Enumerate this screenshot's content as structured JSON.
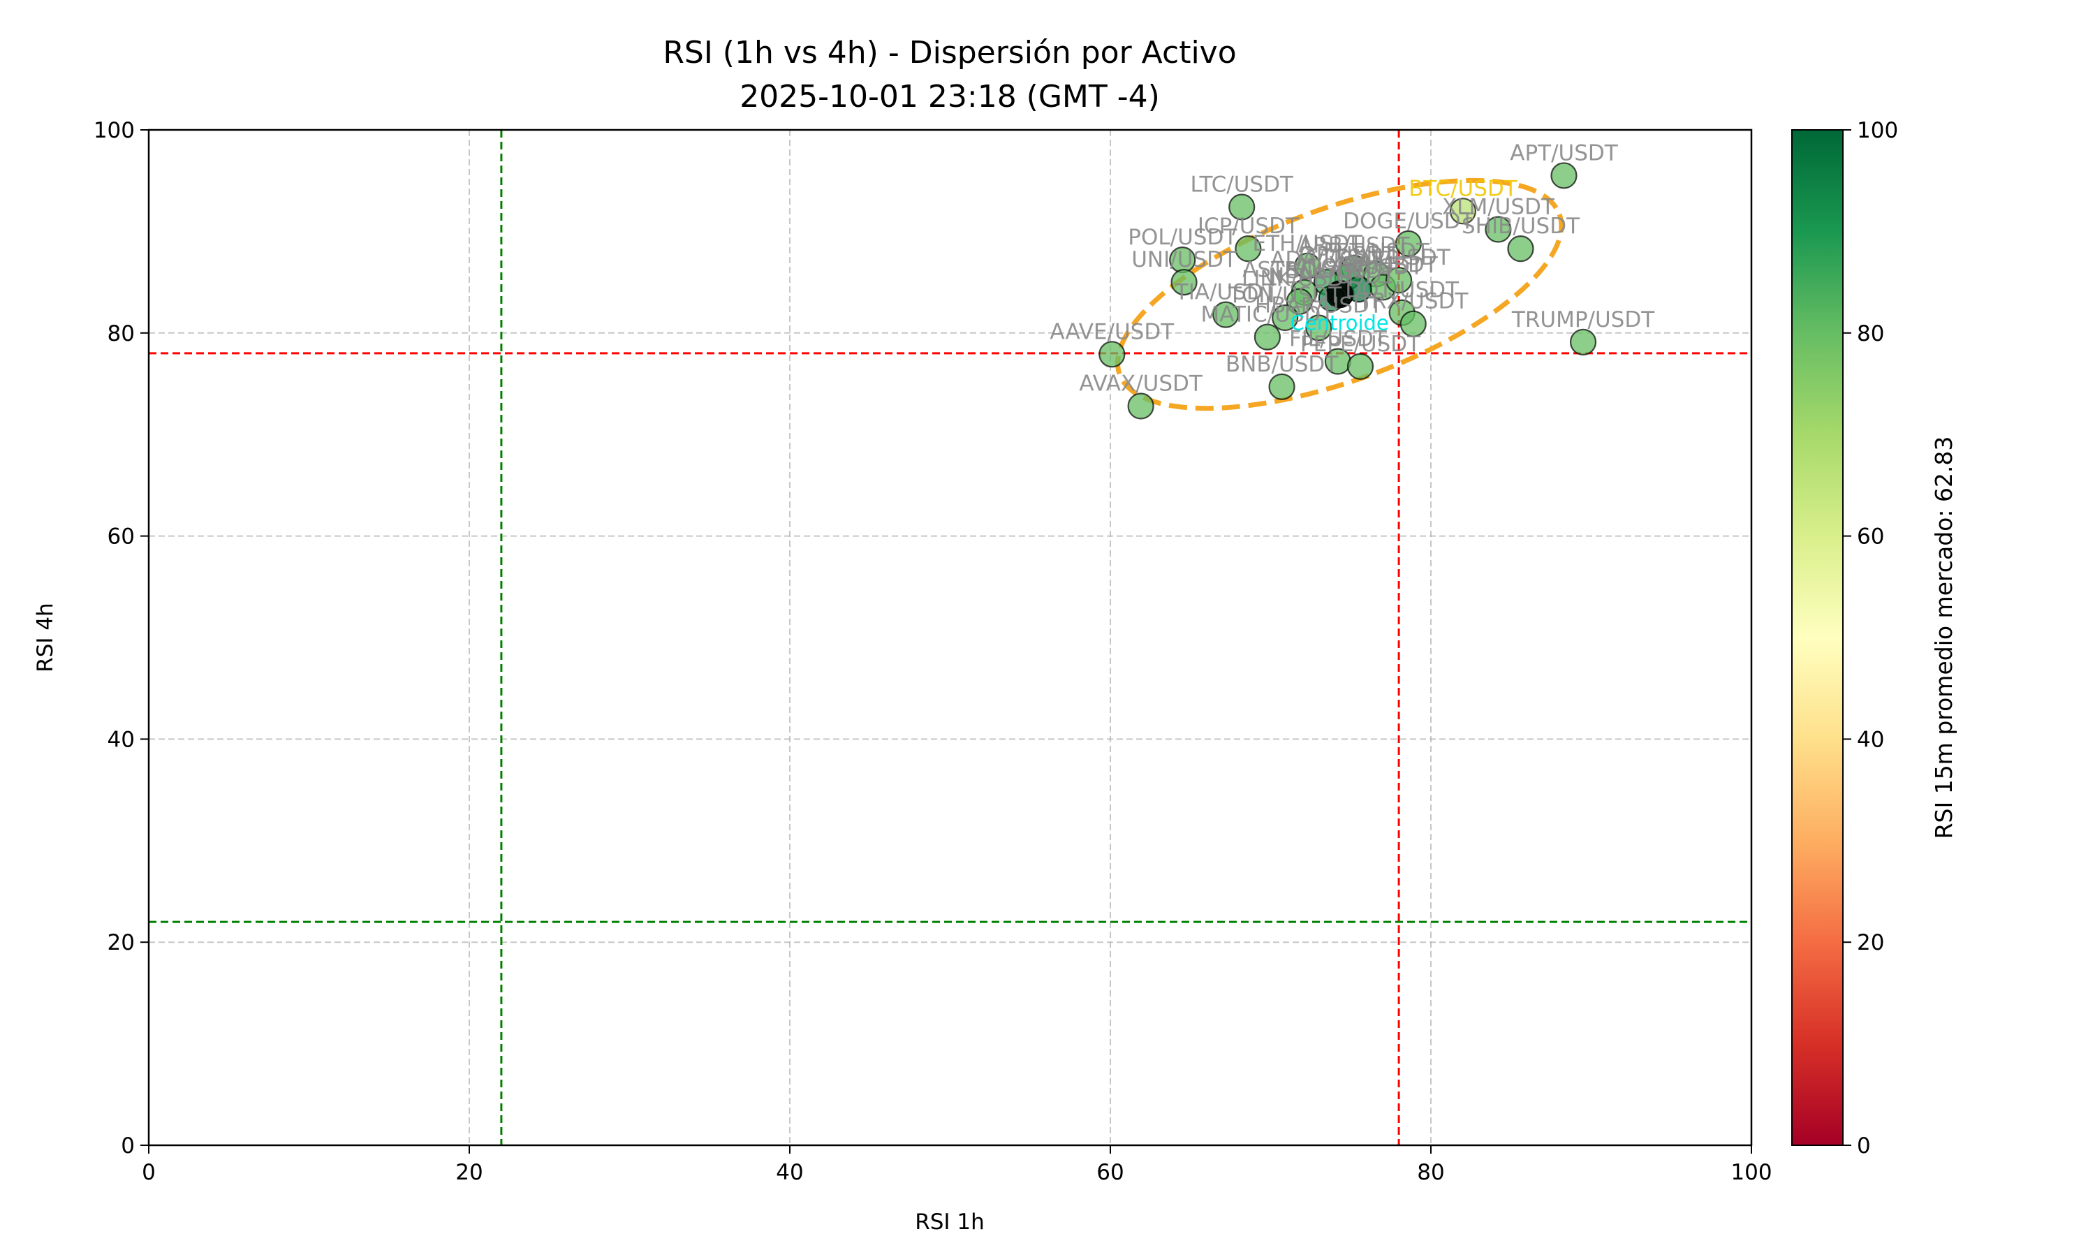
{
  "chart_data": {
    "type": "scatter",
    "title": "RSI (1h vs 4h) - Dispersión por Activo",
    "subtitle": "2025-10-01 23:18 (GMT -4)",
    "xlabel": "RSI 1h",
    "ylabel": "RSI 4h",
    "xlim": [
      0,
      100
    ],
    "ylim": [
      0,
      100
    ],
    "xticks": [
      0,
      20,
      40,
      60,
      80,
      100
    ],
    "yticks": [
      0,
      20,
      40,
      60,
      80,
      100
    ],
    "grid": true,
    "colorbar": {
      "label": "RSI 15m promedio mercado: 62.83",
      "min": 0,
      "max": 100,
      "ticks": [
        0,
        20,
        40,
        60,
        80,
        100
      ],
      "colormap": [
        "#a50026",
        "#d73027",
        "#f46d43",
        "#fdae61",
        "#fee08b",
        "#ffffbf",
        "#d9ef8b",
        "#a6d96a",
        "#66bd63",
        "#1a9850",
        "#006837"
      ]
    },
    "reference_lines": [
      {
        "axis": "x",
        "value": 22,
        "color": "#008000"
      },
      {
        "axis": "x",
        "value": 78,
        "color": "#ff0000"
      },
      {
        "axis": "y",
        "value": 22,
        "color": "#008000"
      },
      {
        "axis": "y",
        "value": 78,
        "color": "#ff0000"
      }
    ],
    "ellipse": {
      "cx": 74.3,
      "cy": 83.8,
      "rx": 14.6,
      "ry": 8.5,
      "angle_deg": 20,
      "color": "#f5a623"
    },
    "centroid": {
      "label": "Centroide",
      "x": 74.3,
      "y": 83.8,
      "color": "#00e5e5"
    },
    "points": [
      {
        "label": "APT/USDT",
        "x": 88.3,
        "y": 95.5,
        "c": 80,
        "color_label": "#888888"
      },
      {
        "label": "LTC/USDT",
        "x": 68.2,
        "y": 92.4,
        "c": 80,
        "color_label": "#888888"
      },
      {
        "label": "BTC/USDT",
        "x": 82.0,
        "y": 92.0,
        "c": 66,
        "color_label": "#f2c600"
      },
      {
        "label": "XLM/USDT",
        "x": 84.2,
        "y": 90.2,
        "c": 80,
        "color_label": "#888888"
      },
      {
        "label": "SHIB/USDT",
        "x": 85.6,
        "y": 88.3,
        "c": 80,
        "color_label": "#888888"
      },
      {
        "label": "DOGE/USDT",
        "x": 78.6,
        "y": 88.8,
        "c": 80,
        "color_label": "#888888"
      },
      {
        "label": "ICP/USDT",
        "x": 68.6,
        "y": 88.3,
        "c": 80,
        "color_label": "#888888"
      },
      {
        "label": "POL/USDT",
        "x": 64.5,
        "y": 87.2,
        "c": 80,
        "color_label": "#888888"
      },
      {
        "label": "ETH/USDT",
        "x": 72.3,
        "y": 86.6,
        "c": 80,
        "color_label": "#888888"
      },
      {
        "label": "UNI/USDT",
        "x": 64.6,
        "y": 85.0,
        "c": 80,
        "color_label": "#888888"
      },
      {
        "label": "ARB/USDT",
        "x": 75.2,
        "y": 86.4,
        "c": 80,
        "color_label": "#888888"
      },
      {
        "label": "FET/USDT",
        "x": 76.6,
        "y": 85.8,
        "c": 80,
        "color_label": "#888888"
      },
      {
        "label": "OP/USDT",
        "x": 74.8,
        "y": 85.5,
        "c": 85,
        "color_label": "#888888"
      },
      {
        "label": "ADA/USDT",
        "x": 73.5,
        "y": 85.0,
        "c": 85,
        "color_label": "#888888"
      },
      {
        "label": "XRP/USDT",
        "x": 77.0,
        "y": 84.5,
        "c": 80,
        "color_label": "#888888"
      },
      {
        "label": "SUI/USDT",
        "x": 78.0,
        "y": 85.2,
        "c": 80,
        "color_label": "#888888"
      },
      {
        "label": "ASTR/USDT",
        "x": 72.1,
        "y": 84.0,
        "c": 80,
        "color_label": "#888888"
      },
      {
        "label": "SOL/USDT",
        "x": 74.4,
        "y": 83.9,
        "c": 90,
        "color_label": "#888888"
      },
      {
        "label": "LINK/USDT",
        "x": 71.8,
        "y": 83.1,
        "c": 80,
        "color_label": "#888888"
      },
      {
        "label": "NEAR/USDT",
        "x": 73.8,
        "y": 83.4,
        "c": 90,
        "color_label": "#888888"
      },
      {
        "label": "ATOM/USDT",
        "x": 75.5,
        "y": 84.3,
        "c": 95,
        "color_label": "#888888"
      },
      {
        "label": "DOT/USDT",
        "x": 78.2,
        "y": 82.0,
        "c": 80,
        "color_label": "#888888"
      },
      {
        "label": "TIA/USDT",
        "x": 67.2,
        "y": 81.8,
        "c": 80,
        "color_label": "#888888"
      },
      {
        "label": "TON/USDT",
        "x": 70.9,
        "y": 81.5,
        "c": 80,
        "color_label": "#888888"
      },
      {
        "label": "HBAR/USDT",
        "x": 73.0,
        "y": 80.5,
        "c": 80,
        "color_label": "#888888"
      },
      {
        "label": "TRX/USDT",
        "x": 78.9,
        "y": 80.9,
        "c": 80,
        "color_label": "#888888"
      },
      {
        "label": "MATIC/USDT",
        "x": 69.8,
        "y": 79.6,
        "c": 80,
        "color_label": "#888888"
      },
      {
        "label": "TRUMP/USDT",
        "x": 89.5,
        "y": 79.1,
        "c": 80,
        "color_label": "#888888"
      },
      {
        "label": "AAVE/USDT",
        "x": 60.1,
        "y": 77.9,
        "c": 80,
        "color_label": "#888888"
      },
      {
        "label": "FIL/USDT",
        "x": 74.2,
        "y": 77.2,
        "c": 80,
        "color_label": "#888888"
      },
      {
        "label": "PEPE/USDT",
        "x": 75.6,
        "y": 76.7,
        "c": 80,
        "color_label": "#888888"
      },
      {
        "label": "BNB/USDT",
        "x": 70.7,
        "y": 74.7,
        "c": 80,
        "color_label": "#888888"
      },
      {
        "label": "AVAX/USDT",
        "x": 61.9,
        "y": 72.8,
        "c": 80,
        "color_label": "#888888"
      }
    ]
  }
}
